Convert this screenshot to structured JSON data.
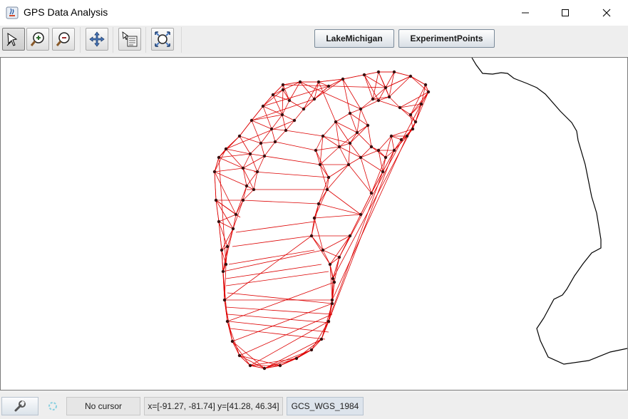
{
  "window": {
    "title": "GPS Data Analysis",
    "controls": [
      "minimize",
      "maximize",
      "close"
    ]
  },
  "toolbar": {
    "tools": [
      {
        "name": "select-tool",
        "icon": "pointer-icon",
        "selected": true
      },
      {
        "name": "zoom-in-tool",
        "icon": "zoom-in-icon",
        "selected": false
      },
      {
        "name": "zoom-out-tool",
        "icon": "zoom-out-icon",
        "selected": false
      },
      {
        "name": "pan-tool",
        "icon": "pan-icon",
        "selected": false
      },
      {
        "name": "info-tool",
        "icon": "info-icon",
        "selected": false
      },
      {
        "name": "reset-tool",
        "icon": "reset-view-icon",
        "selected": false
      }
    ],
    "layers": [
      "LakeMichigan",
      "ExperimentPoints"
    ]
  },
  "map": {
    "colors": {
      "triangulation": "#dd0000",
      "points": "#3a1010",
      "coastline": "#000000",
      "background": "#ffffff"
    }
  },
  "statusbar": {
    "cursor": "No cursor",
    "extent": "x=[-91.27, -81.74] y=[41.28, 46.34]",
    "crs": "GCS_WGS_1984"
  }
}
